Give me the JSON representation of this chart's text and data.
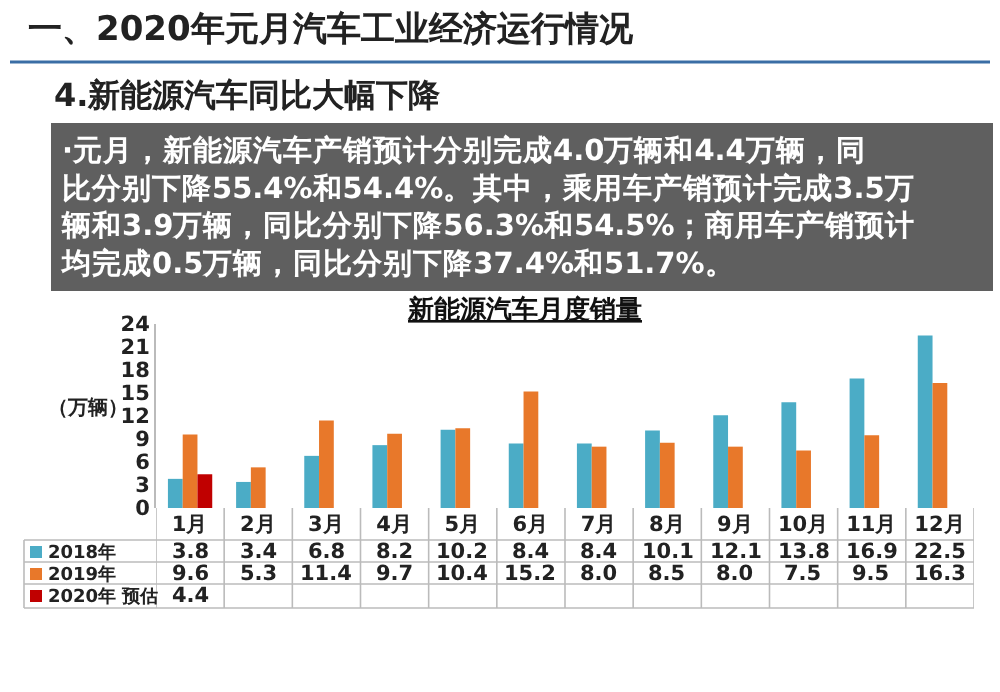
{
  "chart_data": {
    "type": "bar",
    "title": "一、2020年元月汽车工业经济运行情况",
    "subtitle": "4.新能源汽车同比大幅下降",
    "annotations": [
      "·元月，新能源汽车产销预计分别完成4.0万辆和4.4万辆，同比分别下降55.4%和54.4%。其中，乘用车产销预计完成3.5万辆和3.9万辆，同比分别下降56.3%和54.5%；商用车产销预计均完成0.5万辆，同比分别下降37.4%和51.7%。",
      "新能源汽车月度销量"
    ],
    "ylabel": "（万辆）",
    "categories": [
      "1月",
      "2月",
      "3月",
      "4月",
      "5月",
      "6月",
      "7月",
      "8月",
      "9月",
      "10月",
      "11月",
      "12月"
    ],
    "series": [
      {
        "name": "2018年",
        "color": "#4bacc6",
        "values": [
          3.8,
          3.4,
          6.8,
          8.2,
          10.2,
          8.4,
          8.4,
          10.1,
          12.1,
          13.8,
          16.9,
          22.5
        ],
        "value_labels": [
          "3.8",
          "3.4",
          "6.8",
          "8.2",
          "10.2",
          "8.4",
          "8.4",
          "10.1",
          "12.1",
          "13.8",
          "16.9",
          "22.5"
        ]
      },
      {
        "name": "2019年",
        "color": "#e8782a",
        "values": [
          9.6,
          5.3,
          11.4,
          9.7,
          10.4,
          15.2,
          8.0,
          8.5,
          8.0,
          7.5,
          9.5,
          16.3
        ],
        "value_labels": [
          "9.6",
          "5.3",
          "11.4",
          "9.7",
          "10.4",
          "15.2",
          "8.0",
          "8.5",
          "8.0",
          "7.5",
          "9.5",
          "16.3"
        ]
      },
      {
        "name": "2020年 预估",
        "color": "#c00000",
        "values": [
          4.4,
          null,
          null,
          null,
          null,
          null,
          null,
          null,
          null,
          null,
          null,
          null
        ],
        "value_labels": [
          "4.4",
          null,
          null,
          null,
          null,
          null,
          null,
          null,
          null,
          null,
          null,
          null
        ]
      }
    ],
    "ylim": [
      0,
      24
    ],
    "yticks": [
      0,
      3,
      6,
      9,
      12,
      15,
      18,
      21,
      24
    ],
    "legend": "bottom"
  }
}
